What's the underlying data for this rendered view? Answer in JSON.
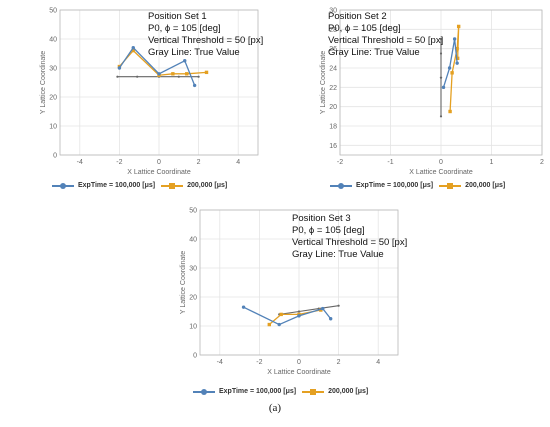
{
  "caption": "(a)",
  "colors": {
    "s1": "#5282b8",
    "s2": "#e4a022",
    "truth": "#666666",
    "grid": "#e4e4e4",
    "frame": "#b8b8b8"
  },
  "chart_data": [
    {
      "type": "line",
      "id": "p1",
      "xlabel": "X Lattice Coordinate",
      "ylabel": "Y Lattice Coordinate",
      "xlim": [
        -5,
        5
      ],
      "ylim": [
        0,
        50
      ],
      "xticks": [
        -4,
        -2,
        0,
        2,
        4
      ],
      "yticks": [
        0,
        10,
        20,
        30,
        40,
        50
      ],
      "grid": true,
      "annotation": [
        "Position Set 1",
        "P0, ϕ = 105 [deg]",
        "Vertical Threshold = 50 [px]",
        "Gray Line: True Value"
      ],
      "series": [
        {
          "name": "ExpTime = 100,000 [μs]",
          "color": "#5282b8",
          "marker": "circle",
          "x": [
            -2.0,
            -1.3,
            0.0,
            1.3,
            1.8
          ],
          "y": [
            30.0,
            37.0,
            28.0,
            32.5,
            24.0
          ]
        },
        {
          "name": "200,000 [μs]",
          "color": "#e4a022",
          "marker": "square",
          "x": [
            -2.0,
            -1.3,
            0.0,
            0.7,
            1.4,
            2.4
          ],
          "y": [
            30.5,
            36.0,
            27.5,
            28.0,
            28.0,
            28.5
          ]
        },
        {
          "name": "True Value",
          "color": "#666666",
          "marker": "dot",
          "x": [
            -2.1,
            -1.1,
            0.0,
            1.0,
            2.0
          ],
          "y": [
            27.0,
            27.0,
            27.0,
            27.0,
            27.0
          ]
        }
      ],
      "legend": [
        "ExpTime = 100,000 [μs]",
        "200,000 [μs]"
      ]
    },
    {
      "type": "line",
      "id": "p2",
      "xlabel": "X Lattice Coordinate",
      "ylabel": "Y Lattice Coordinate",
      "xlim": [
        -2,
        2
      ],
      "ylim": [
        15,
        30
      ],
      "xticks": [
        -2,
        -1,
        0,
        1,
        2
      ],
      "yticks": [
        16,
        18,
        20,
        22,
        24,
        26,
        28,
        30
      ],
      "grid": true,
      "annotation": [
        "Position Set 2",
        "P0, ϕ = 105 [deg]",
        "Vertical Threshold = 50 [px]",
        "Gray Line: True Value"
      ],
      "series": [
        {
          "name": "ExpTime = 100,000 [μs]",
          "color": "#5282b8",
          "marker": "circle",
          "x": [
            0.05,
            0.17,
            0.27,
            0.32
          ],
          "y": [
            22.0,
            24.0,
            27.0,
            24.5
          ]
        },
        {
          "name": "200,000 [μs]",
          "color": "#e4a022",
          "marker": "square",
          "x": [
            0.18,
            0.22,
            0.32,
            0.35,
            0.33
          ],
          "y": [
            19.5,
            23.5,
            26.0,
            28.3,
            25.0
          ]
        },
        {
          "name": "True Value",
          "color": "#666666",
          "marker": "dot",
          "x": [
            0.0,
            0.0,
            0.0,
            0.0,
            0.0
          ],
          "y": [
            19.0,
            23.0,
            27.0,
            25.5,
            23.0
          ]
        }
      ],
      "legend": [
        "ExpTime = 100,000 [μs]",
        "200,000 [μs]"
      ]
    },
    {
      "type": "line",
      "id": "p3",
      "xlabel": "X Lattice Coordinate",
      "ylabel": "Y Lattice Coordinate",
      "xlim": [
        -5,
        5
      ],
      "ylim": [
        0,
        50
      ],
      "xticks": [
        -4,
        -2,
        0,
        2,
        4
      ],
      "yticks": [
        0,
        10,
        20,
        30,
        40,
        50
      ],
      "grid": true,
      "annotation": [
        "Position Set 3",
        "P0, ϕ = 105 [deg]",
        "Vertical Threshold = 50 [px]",
        "Gray Line: True Value"
      ],
      "series": [
        {
          "name": "ExpTime = 100,000 [μs]",
          "color": "#5282b8",
          "marker": "circle",
          "x": [
            -2.8,
            -1.0,
            0.0,
            1.2,
            1.6
          ],
          "y": [
            16.5,
            10.5,
            13.5,
            16.0,
            12.5
          ]
        },
        {
          "name": "200,000 [μs]",
          "color": "#e4a022",
          "marker": "square",
          "x": [
            -1.5,
            -0.9,
            0.0,
            1.1
          ],
          "y": [
            10.5,
            14.0,
            14.0,
            15.5
          ]
        },
        {
          "name": "True Value",
          "color": "#666666",
          "marker": "dot",
          "x": [
            -1.0,
            0.0,
            1.0,
            2.0
          ],
          "y": [
            14.0,
            15.0,
            16.0,
            17.0
          ]
        }
      ],
      "legend": [
        "ExpTime = 100,000 [μs]",
        "200,000 [μs]"
      ]
    }
  ]
}
